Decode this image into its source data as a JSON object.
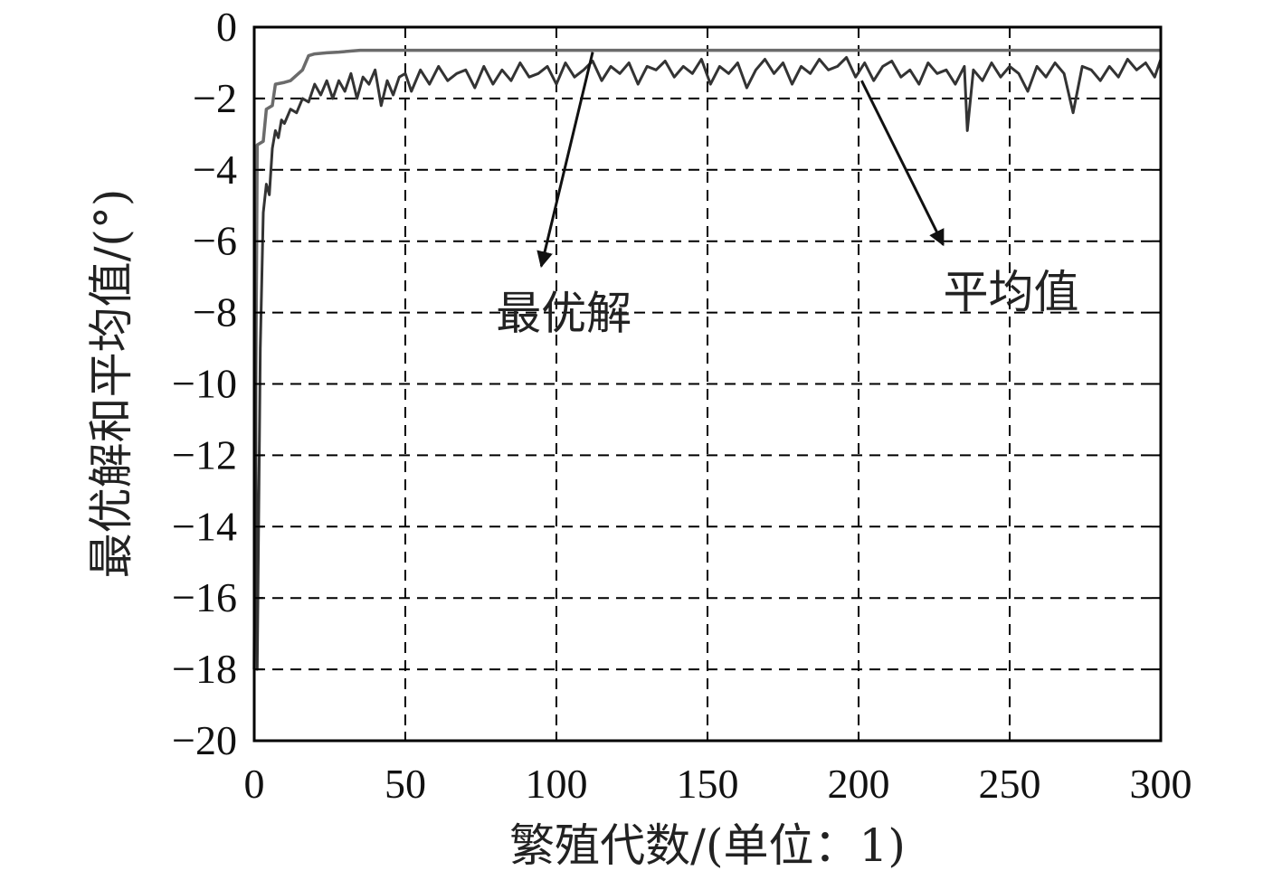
{
  "chart_data": {
    "type": "line",
    "title": "",
    "xlabel": "繁殖代数/(单位：1)",
    "ylabel": "最优解和平均值/(°)",
    "xlim": [
      0,
      300
    ],
    "ylim": [
      -20,
      0
    ],
    "xticks": [
      "0",
      "50",
      "100",
      "150",
      "200",
      "250",
      "300"
    ],
    "yticks": [
      "−20",
      "−18",
      "−16",
      "−14",
      "−12",
      "−10",
      "−8",
      "−6",
      "−4",
      "−2",
      "0"
    ],
    "grid": true,
    "colors": {
      "best": "#6b6b6b",
      "mean": "#333333",
      "grid": "#000000"
    },
    "series": [
      {
        "key": "best",
        "x": [
          0,
          1,
          3,
          4,
          6,
          7,
          10,
          12,
          16,
          18,
          20,
          24,
          28,
          35,
          300
        ],
        "y": [
          -18.0,
          -3.3,
          -3.2,
          -2.3,
          -2.2,
          -1.6,
          -1.55,
          -1.5,
          -1.2,
          -0.8,
          -0.75,
          -0.72,
          -0.7,
          -0.65,
          -0.65
        ]
      },
      {
        "key": "mean",
        "x": [
          0,
          1,
          2,
          3,
          4,
          5,
          6,
          7,
          8,
          9,
          10,
          12,
          14,
          16,
          18,
          20,
          22,
          24,
          26,
          28,
          30,
          32,
          34,
          36,
          38,
          40,
          42,
          44,
          46,
          48,
          50,
          52,
          55,
          58,
          61,
          64,
          67,
          70,
          73,
          76,
          79,
          82,
          85,
          88,
          91,
          94,
          97,
          100,
          103,
          106,
          109,
          112,
          115,
          118,
          121,
          124,
          127,
          130,
          133,
          136,
          139,
          142,
          145,
          148,
          151,
          154,
          157,
          160,
          163,
          166,
          169,
          172,
          175,
          178,
          181,
          184,
          187,
          190,
          193,
          196,
          199,
          202,
          205,
          208,
          211,
          214,
          217,
          220,
          223,
          226,
          229,
          232,
          235,
          236,
          238,
          241,
          244,
          247,
          250,
          253,
          256,
          259,
          262,
          265,
          268,
          271,
          274,
          277,
          280,
          283,
          286,
          289,
          292,
          295,
          298,
          300
        ],
        "y": [
          -3.8,
          -18.0,
          -9.0,
          -5.2,
          -4.4,
          -4.7,
          -3.4,
          -2.9,
          -3.1,
          -2.6,
          -2.7,
          -2.3,
          -2.4,
          -2.0,
          -2.1,
          -1.6,
          -1.9,
          -1.5,
          -2.0,
          -1.5,
          -1.8,
          -1.3,
          -2.0,
          -1.4,
          -1.6,
          -1.2,
          -2.2,
          -1.5,
          -1.9,
          -1.4,
          -1.3,
          -1.8,
          -1.2,
          -1.6,
          -1.1,
          -1.5,
          -1.3,
          -1.2,
          -1.7,
          -1.1,
          -1.6,
          -1.2,
          -1.5,
          -1.0,
          -1.4,
          -1.3,
          -1.1,
          -1.6,
          -1.0,
          -1.4,
          -1.2,
          -0.95,
          -1.5,
          -1.1,
          -1.3,
          -1.0,
          -1.6,
          -1.1,
          -1.2,
          -0.95,
          -1.4,
          -1.1,
          -1.3,
          -0.9,
          -1.6,
          -1.1,
          -1.3,
          -1.0,
          -1.7,
          -1.2,
          -0.9,
          -1.3,
          -1.0,
          -1.6,
          -1.1,
          -1.3,
          -0.9,
          -1.2,
          -1.1,
          -0.85,
          -1.4,
          -1.0,
          -1.5,
          -1.1,
          -0.95,
          -1.4,
          -1.2,
          -1.6,
          -1.0,
          -1.3,
          -1.2,
          -1.6,
          -1.1,
          -2.9,
          -1.2,
          -1.5,
          -1.0,
          -1.4,
          -1.1,
          -1.3,
          -1.8,
          -1.1,
          -1.4,
          -1.0,
          -1.3,
          -2.4,
          -1.1,
          -1.2,
          -1.5,
          -1.1,
          -1.4,
          -0.9,
          -1.2,
          -1.0,
          -1.4,
          -0.9
        ]
      }
    ],
    "annotations": [
      {
        "key": "best_label",
        "text": "最优解",
        "from": [
          112,
          -0.7
        ],
        "to": [
          95,
          -6.7
        ],
        "text_at": [
          80,
          -8.0
        ]
      },
      {
        "key": "mean_label",
        "text": "平均值",
        "from": [
          201,
          -1.5
        ],
        "to": [
          228,
          -6.1
        ],
        "text_at": [
          228,
          -7.4
        ]
      }
    ]
  }
}
